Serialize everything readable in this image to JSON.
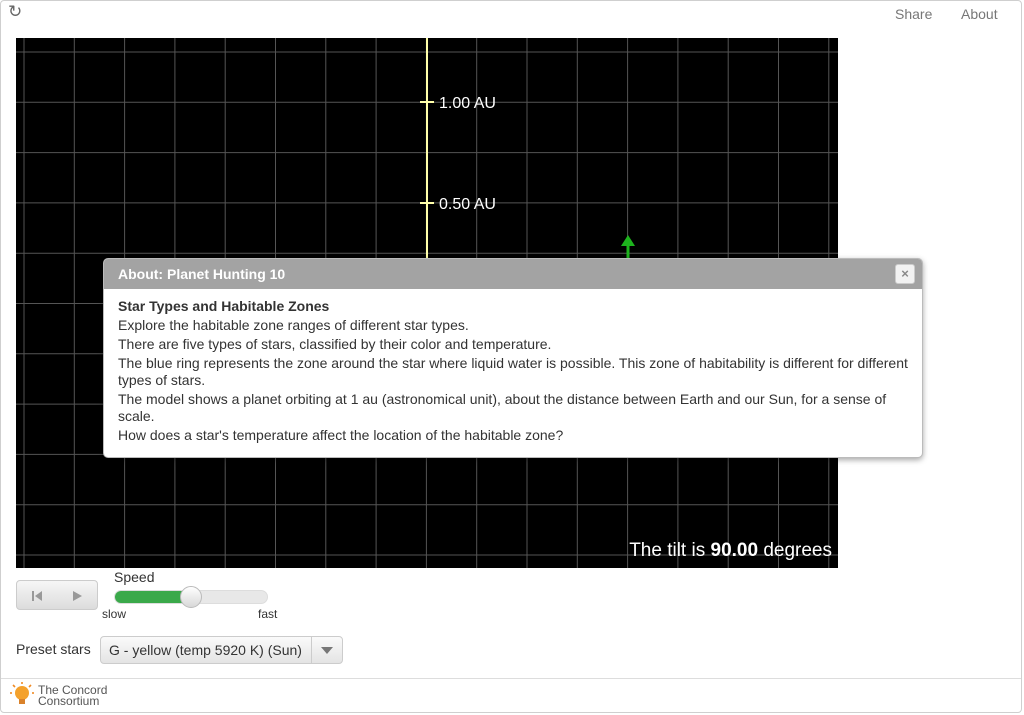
{
  "header": {
    "reload_icon": "reload-icon",
    "share_label": "Share",
    "about_label": "About"
  },
  "simulation": {
    "au_labels": [
      "1.00 AU",
      "0.50 AU"
    ],
    "tilt_prefix": "The tilt is",
    "tilt_value": "90.00",
    "tilt_suffix": "degrees",
    "axis_color": "#ffffaa",
    "arrow_color": "#1db31d"
  },
  "modal": {
    "title": "About: Planet Hunting 10",
    "close_label": "×",
    "heading": "Star Types and Habitable Zones",
    "paragraphs": [
      "Explore the habitable zone ranges of different star types.",
      "There are five types of stars, classified by their color and temperature.",
      "The blue ring represents the zone around the star where liquid water is possible. This zone of habitability is different for different types of stars.",
      "The model shows a planet orbiting at 1 au (astronomical unit), about the distance between Earth and our Sun, for a sense of scale.",
      "How does a star's temperature affect the location of the habitable zone?"
    ]
  },
  "controls": {
    "reset_icon": "skip-back-icon",
    "play_icon": "play-icon",
    "speed_label": "Speed",
    "speed_level": 0.5,
    "slow_label": "slow",
    "fast_label": "fast",
    "slider_color": "#3aa94a"
  },
  "preset": {
    "label": "Preset stars",
    "selected": "G - yellow (temp 5920 K) (Sun)"
  },
  "footer": {
    "logo_line1": "The Concord",
    "logo_line2": "Consortium"
  }
}
